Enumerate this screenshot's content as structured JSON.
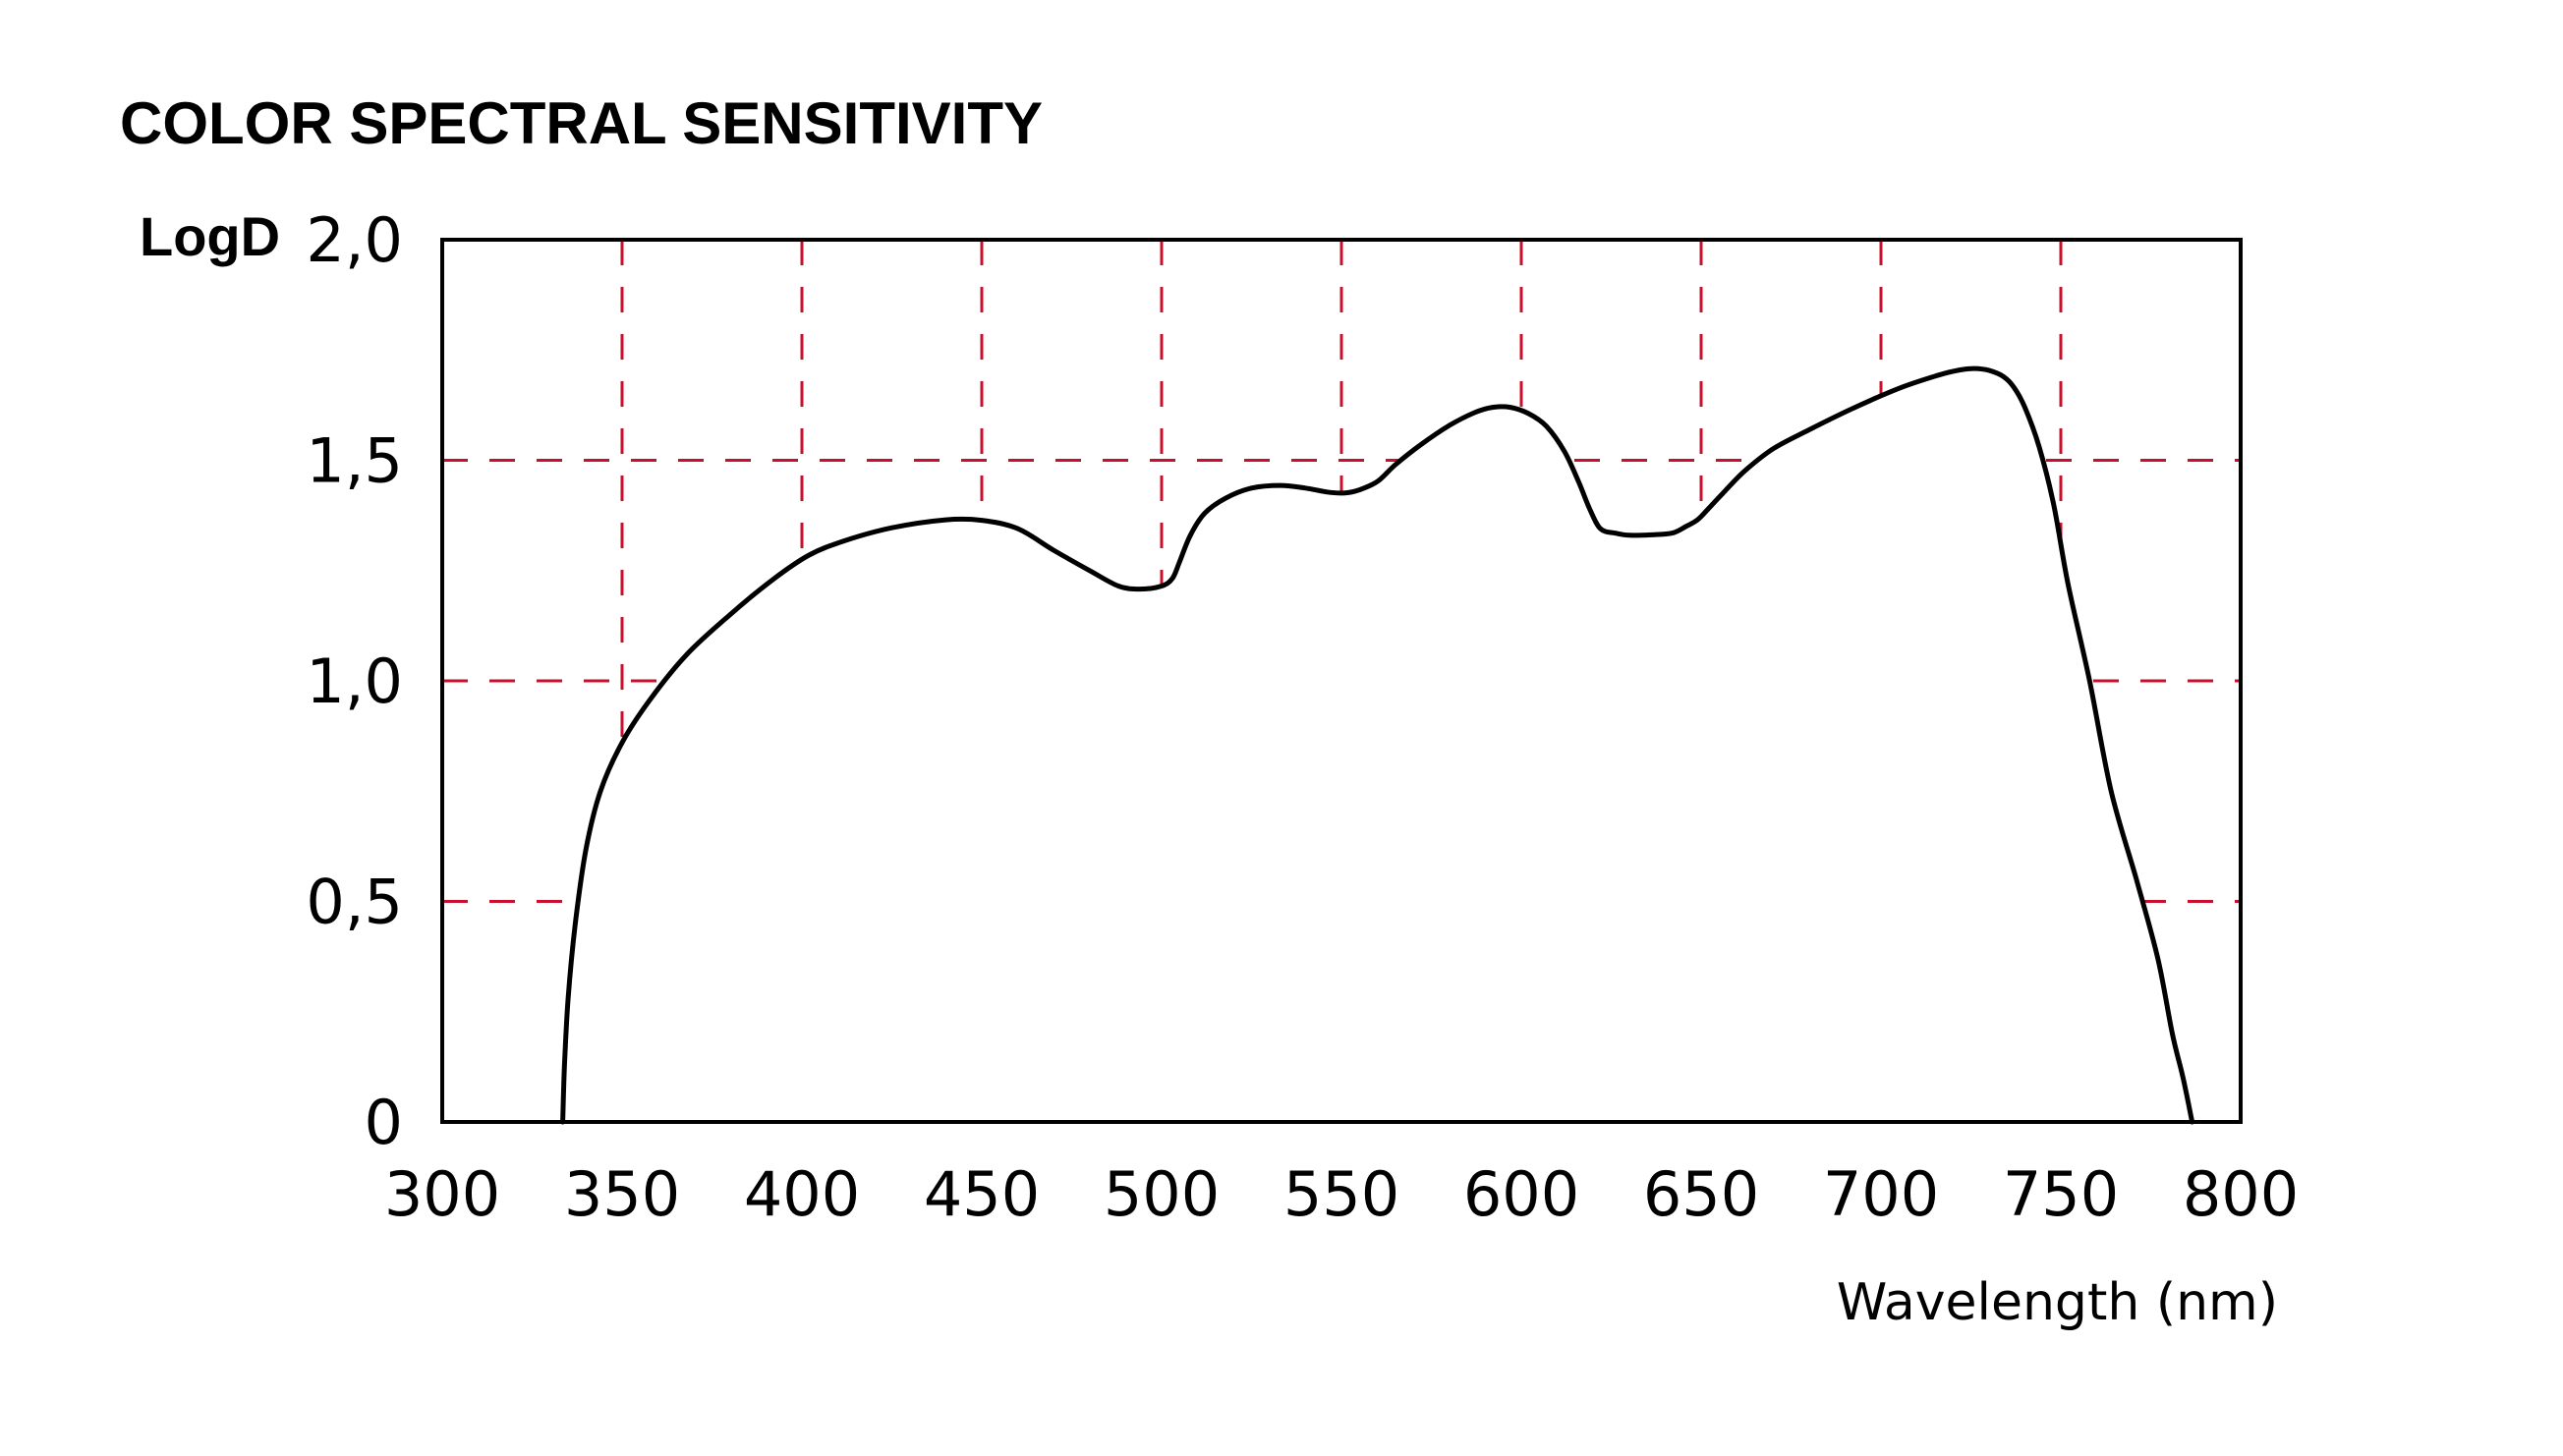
{
  "chart_data": {
    "type": "line",
    "title": "COLOR SPECTRAL SENSITIVITY",
    "xlabel": "Wavelength (nm)",
    "ylabel": "LogD",
    "xlim": [
      300,
      800
    ],
    "ylim": [
      0,
      2.0
    ],
    "x_ticks": [
      300,
      350,
      400,
      450,
      500,
      550,
      600,
      650,
      700,
      750,
      800
    ],
    "x_tick_labels": [
      "300",
      "350",
      "400",
      "450",
      "500",
      "550",
      "600",
      "650",
      "700",
      "750",
      "800"
    ],
    "y_ticks": [
      0,
      0.5,
      1.0,
      1.5,
      2.0
    ],
    "y_tick_labels": [
      "0",
      "0,5",
      "1,0",
      "1,5",
      "2,0"
    ],
    "grid": true,
    "grid_color": "#c8102e",
    "line_color": "#000000",
    "series": [
      {
        "x": [
          333.5,
          334,
          335,
          337,
          340,
          344,
          350,
          358,
          368,
          380,
          392,
          402,
          412,
          425,
          440,
          450,
          460,
          470,
          480,
          488,
          494,
          500,
          503,
          505,
          508,
          512,
          518,
          525,
          533,
          540,
          546,
          551,
          555,
          560,
          565,
          572,
          580,
          587,
          592,
          597,
          602,
          607,
          612,
          616,
          619,
          622,
          626,
          630,
          636,
          642,
          646,
          649,
          652,
          656,
          662,
          670,
          680,
          692,
          705,
          716,
          722,
          726,
          730,
          734,
          737,
          740,
          744,
          748,
          752,
          758,
          764,
          771,
          777,
          781,
          784,
          786.5
        ],
        "y": [
          0,
          0.13,
          0.28,
          0.45,
          0.62,
          0.75,
          0.86,
          0.96,
          1.06,
          1.15,
          1.23,
          1.285,
          1.318,
          1.347,
          1.365,
          1.364,
          1.345,
          1.296,
          1.25,
          1.215,
          1.208,
          1.215,
          1.232,
          1.27,
          1.33,
          1.38,
          1.415,
          1.437,
          1.443,
          1.437,
          1.428,
          1.426,
          1.433,
          1.452,
          1.49,
          1.535,
          1.579,
          1.608,
          1.62,
          1.62,
          1.606,
          1.577,
          1.52,
          1.45,
          1.39,
          1.345,
          1.335,
          1.33,
          1.331,
          1.335,
          1.351,
          1.365,
          1.39,
          1.425,
          1.475,
          1.526,
          1.569,
          1.617,
          1.663,
          1.693,
          1.705,
          1.708,
          1.704,
          1.69,
          1.665,
          1.62,
          1.53,
          1.4,
          1.22,
          1.0,
          0.75,
          0.55,
          0.37,
          0.2,
          0.1,
          0
        ]
      }
    ]
  }
}
